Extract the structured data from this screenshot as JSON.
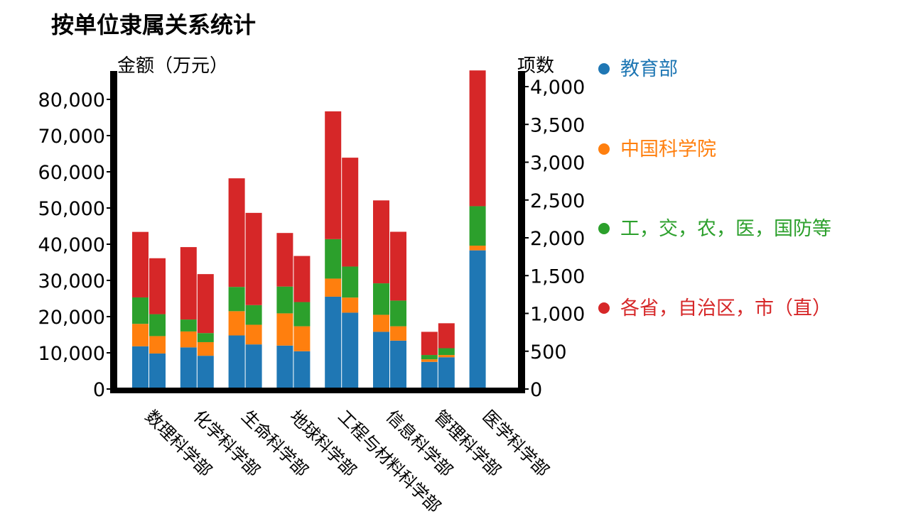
{
  "chart_data": {
    "type": "bar",
    "title": "按单位隶属关系统计",
    "ylabel_left": "金额（万元）",
    "ylabel_right": "项数",
    "ylim_left": [
      0,
      88000
    ],
    "ylim_right": [
      0,
      4200
    ],
    "yticks_left": [
      "0",
      "10,000",
      "20,000",
      "30,000",
      "40,000",
      "50,000",
      "60,000",
      "70,000",
      "80,000"
    ],
    "yticks_right": [
      "0",
      "500",
      "1,000",
      "1,500",
      "2,000",
      "2,500",
      "3,000",
      "3,500",
      "4,000"
    ],
    "categories": [
      "数理科学部",
      "化学科学部",
      "生命科学部",
      "地球科学部",
      "工程与材料科学部",
      "信息科学部",
      "管理科学部",
      "医学科学部"
    ],
    "legend_position": "right",
    "grid": false,
    "series_order": [
      "教育部",
      "中国科学院",
      "工，交，农，医，国防等",
      "各省，自治区，市（直）"
    ],
    "amount_series": [
      {
        "name": "教育部",
        "color": "#1f77b4",
        "values": [
          11800,
          11500,
          14800,
          12000,
          25500,
          15800,
          7500,
          38300
        ]
      },
      {
        "name": "中国科学院",
        "color": "#ff7f0e",
        "values": [
          6200,
          4400,
          6700,
          8900,
          5000,
          4700,
          700,
          1300
        ]
      },
      {
        "name": "工，交，农，医，国防等",
        "color": "#2ca02c",
        "values": [
          7300,
          3300,
          6700,
          7400,
          10900,
          8700,
          1200,
          10900
        ]
      },
      {
        "name": "各省，自治区，市（直）",
        "color": "#d62728",
        "values": [
          18100,
          20000,
          30000,
          14800,
          35300,
          22900,
          6400,
          37500
        ]
      }
    ],
    "count_series": [
      {
        "name": "教育部",
        "color": "#1f77b4",
        "values": [
          470,
          440,
          590,
          500,
          1010,
          640,
          420,
          0
        ]
      },
      {
        "name": "中国科学院",
        "color": "#ff7f0e",
        "values": [
          230,
          180,
          260,
          330,
          200,
          190,
          30,
          0
        ]
      },
      {
        "name": "工，交，农，医，国防等",
        "color": "#2ca02c",
        "values": [
          290,
          120,
          260,
          320,
          410,
          340,
          90,
          0
        ]
      },
      {
        "name": "各省，自治区，市（直）",
        "color": "#d62728",
        "values": [
          740,
          780,
          1220,
          610,
          1440,
          910,
          330,
          0
        ]
      }
    ]
  }
}
